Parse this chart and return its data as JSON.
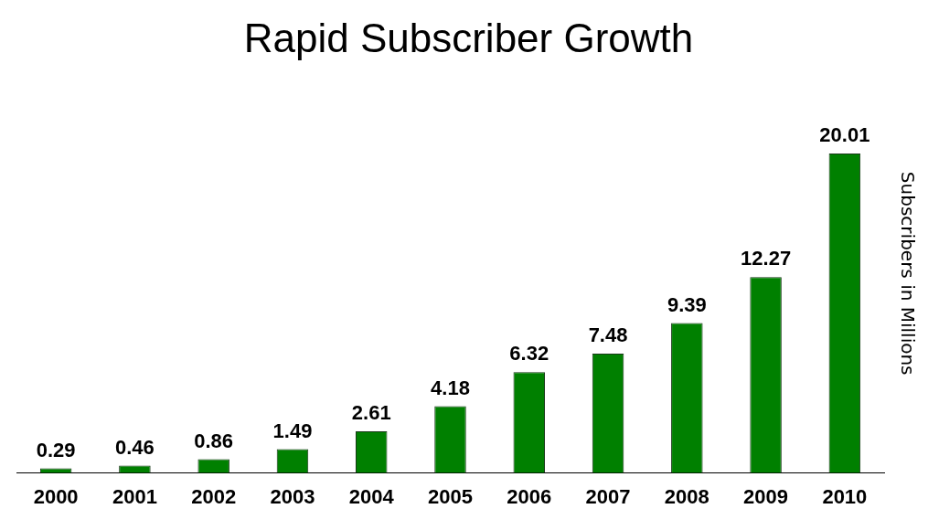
{
  "chart_data": {
    "type": "bar",
    "title": "Rapid Subscriber Growth",
    "ylabel": "Subscribers in Millions",
    "categories": [
      "2000",
      "2001",
      "2002",
      "2003",
      "2004",
      "2005",
      "2006",
      "2007",
      "2008",
      "2009",
      "2010"
    ],
    "values": [
      0.29,
      0.46,
      0.86,
      1.49,
      2.61,
      4.18,
      6.32,
      7.48,
      9.39,
      12.27,
      20.01
    ],
    "color": "#008000",
    "data_labels": true,
    "grid": false,
    "legend": false
  }
}
